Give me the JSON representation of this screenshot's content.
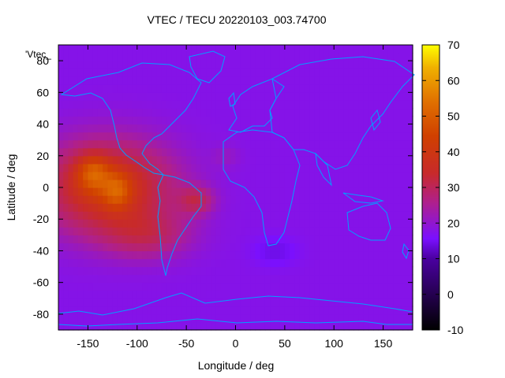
{
  "chart_data": {
    "type": "heatmap",
    "title": "VTEC / TECU 20220103_003.74700",
    "xlabel": "Longitude / deg",
    "ylabel": "Latitude / deg",
    "corner_label": "'Vtec_",
    "xlim": [
      -180,
      180
    ],
    "ylim": [
      -90,
      90
    ],
    "xticks": [
      -150,
      -100,
      -50,
      0,
      50,
      100,
      150
    ],
    "yticks": [
      -80,
      -60,
      -40,
      -20,
      0,
      20,
      40,
      60,
      80
    ],
    "colorbar": {
      "range": [
        -10,
        70
      ],
      "ticks": [
        -10,
        0,
        10,
        20,
        30,
        40,
        50,
        60,
        70
      ],
      "palette": "black-purple-red-orange-yellow"
    },
    "field": {
      "background_value": 12,
      "blobs": [
        {
          "lon": -130,
          "lat": 0,
          "sigma_lon": 45,
          "sigma_lat": 20,
          "amp": 25
        },
        {
          "lon": -145,
          "lat": 10,
          "sigma_lon": 12,
          "sigma_lat": 8,
          "amp": 15
        },
        {
          "lon": -120,
          "lat": -2,
          "sigma_lon": 10,
          "sigma_lat": 8,
          "amp": 12
        },
        {
          "lon": -90,
          "lat": -30,
          "sigma_lon": 30,
          "sigma_lat": 10,
          "amp": 10
        },
        {
          "lon": -40,
          "lat": -8,
          "sigma_lon": 12,
          "sigma_lat": 6,
          "amp": 12
        },
        {
          "lon": 40,
          "lat": -40,
          "sigma_lon": 15,
          "sigma_lat": 6,
          "amp": -4
        },
        {
          "lon": -10,
          "lat": 20,
          "sigma_lon": 10,
          "sigma_lat": 5,
          "amp": 3
        }
      ]
    },
    "coastline_color": "#00a0ff"
  }
}
